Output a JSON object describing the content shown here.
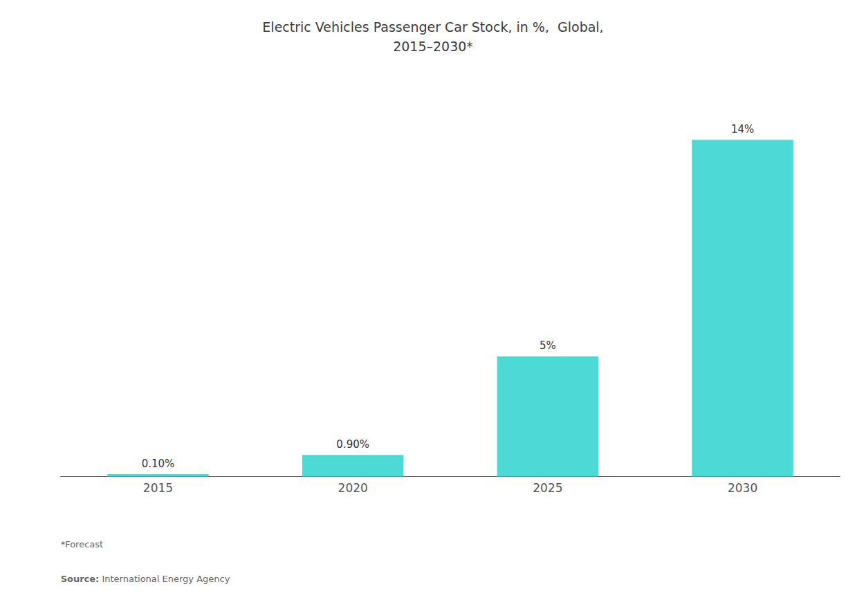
{
  "chart_data": {
    "type": "bar",
    "title": "Electric Vehicles Passenger Car Stock, in %,  Global,\n2015–2030*",
    "categories": [
      "2015",
      "2020",
      "2025",
      "2030"
    ],
    "values": [
      0.1,
      0.9,
      5.0,
      14.0
    ],
    "value_labels": [
      "0.10%",
      "0.90%",
      "5%",
      "14%"
    ],
    "data_labels": true,
    "color": "#4DD9D5",
    "ylim": [
      0,
      16
    ],
    "tick_labels": "x",
    "grid": false,
    "annotations": [
      "*Forecast",
      "Source:",
      "International Energy Agency"
    ]
  }
}
